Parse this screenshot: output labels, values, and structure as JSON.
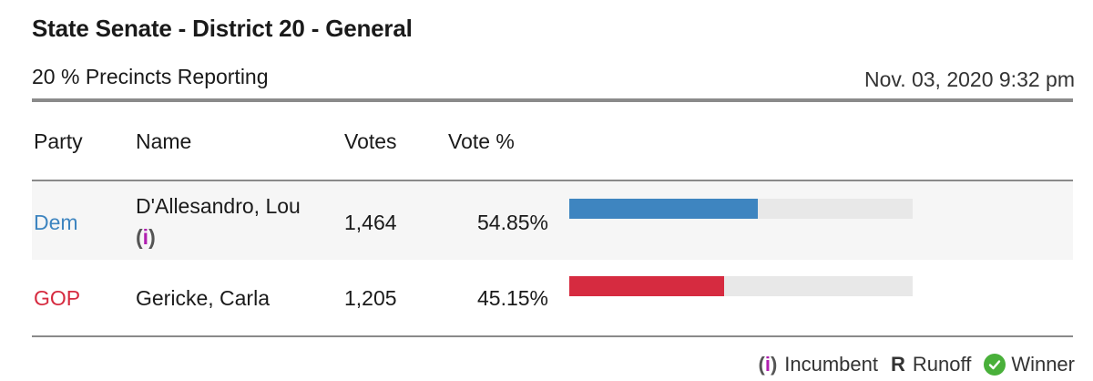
{
  "race": {
    "title": "State Senate - District 20 - General",
    "reporting": "20 % Precincts Reporting",
    "timestamp": "Nov. 03, 2020 9:32 pm"
  },
  "table": {
    "headers": {
      "party": "Party",
      "name": "Name",
      "votes": "Votes",
      "pct": "Vote %"
    },
    "rows": [
      {
        "party": "Dem",
        "name": "D'Allesandro, Lou",
        "incumbent_mark": "i",
        "votes": "1,464",
        "pct": "54.85%",
        "share": 0.5485,
        "color": "#3e85c0"
      },
      {
        "party": "GOP",
        "name": "Gericke, Carla",
        "votes": "1,205",
        "pct": "45.15%",
        "share": 0.4515,
        "color": "#d62b40"
      }
    ]
  },
  "legend": {
    "incumbent_symbol": "i",
    "incumbent": "Incumbent",
    "runoff_symbol": "R",
    "runoff": "Runoff",
    "winner": "Winner",
    "winner_color": "#49b03a",
    "incumbent_color": "#b01fb0"
  }
}
